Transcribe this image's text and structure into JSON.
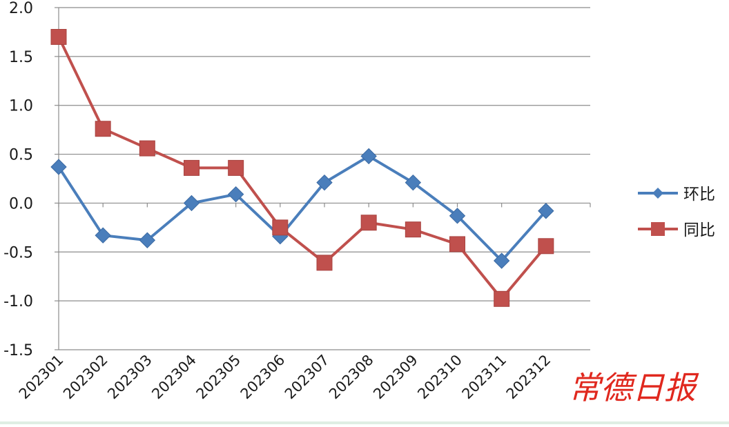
{
  "chart_data": {
    "type": "line",
    "title": "",
    "xlabel": "",
    "ylabel": "",
    "categories": [
      "202301",
      "202302",
      "202303",
      "202304",
      "202305",
      "202306",
      "202307",
      "202308",
      "202309",
      "202310",
      "202311",
      "202312"
    ],
    "ylim": [
      -1.5,
      2.0
    ],
    "yticks": [
      "2.0",
      "1.5",
      "1.0",
      "0.5",
      "0.0",
      "-0.5",
      "-1.0",
      "-1.5"
    ],
    "grid": true,
    "legend_position": "right",
    "series": [
      {
        "name": "环比",
        "color": "#4a7ebb",
        "marker": "diamond",
        "values": [
          0.37,
          -0.33,
          -0.38,
          0.0,
          0.09,
          -0.34,
          0.21,
          0.48,
          0.21,
          -0.13,
          -0.59,
          -0.08
        ]
      },
      {
        "name": "同比",
        "color": "#c0504d",
        "marker": "square",
        "values": [
          1.7,
          0.76,
          0.56,
          0.36,
          0.36,
          -0.25,
          -0.61,
          -0.2,
          -0.27,
          -0.42,
          -0.98,
          -0.44
        ]
      }
    ]
  },
  "watermark": "常德日报"
}
